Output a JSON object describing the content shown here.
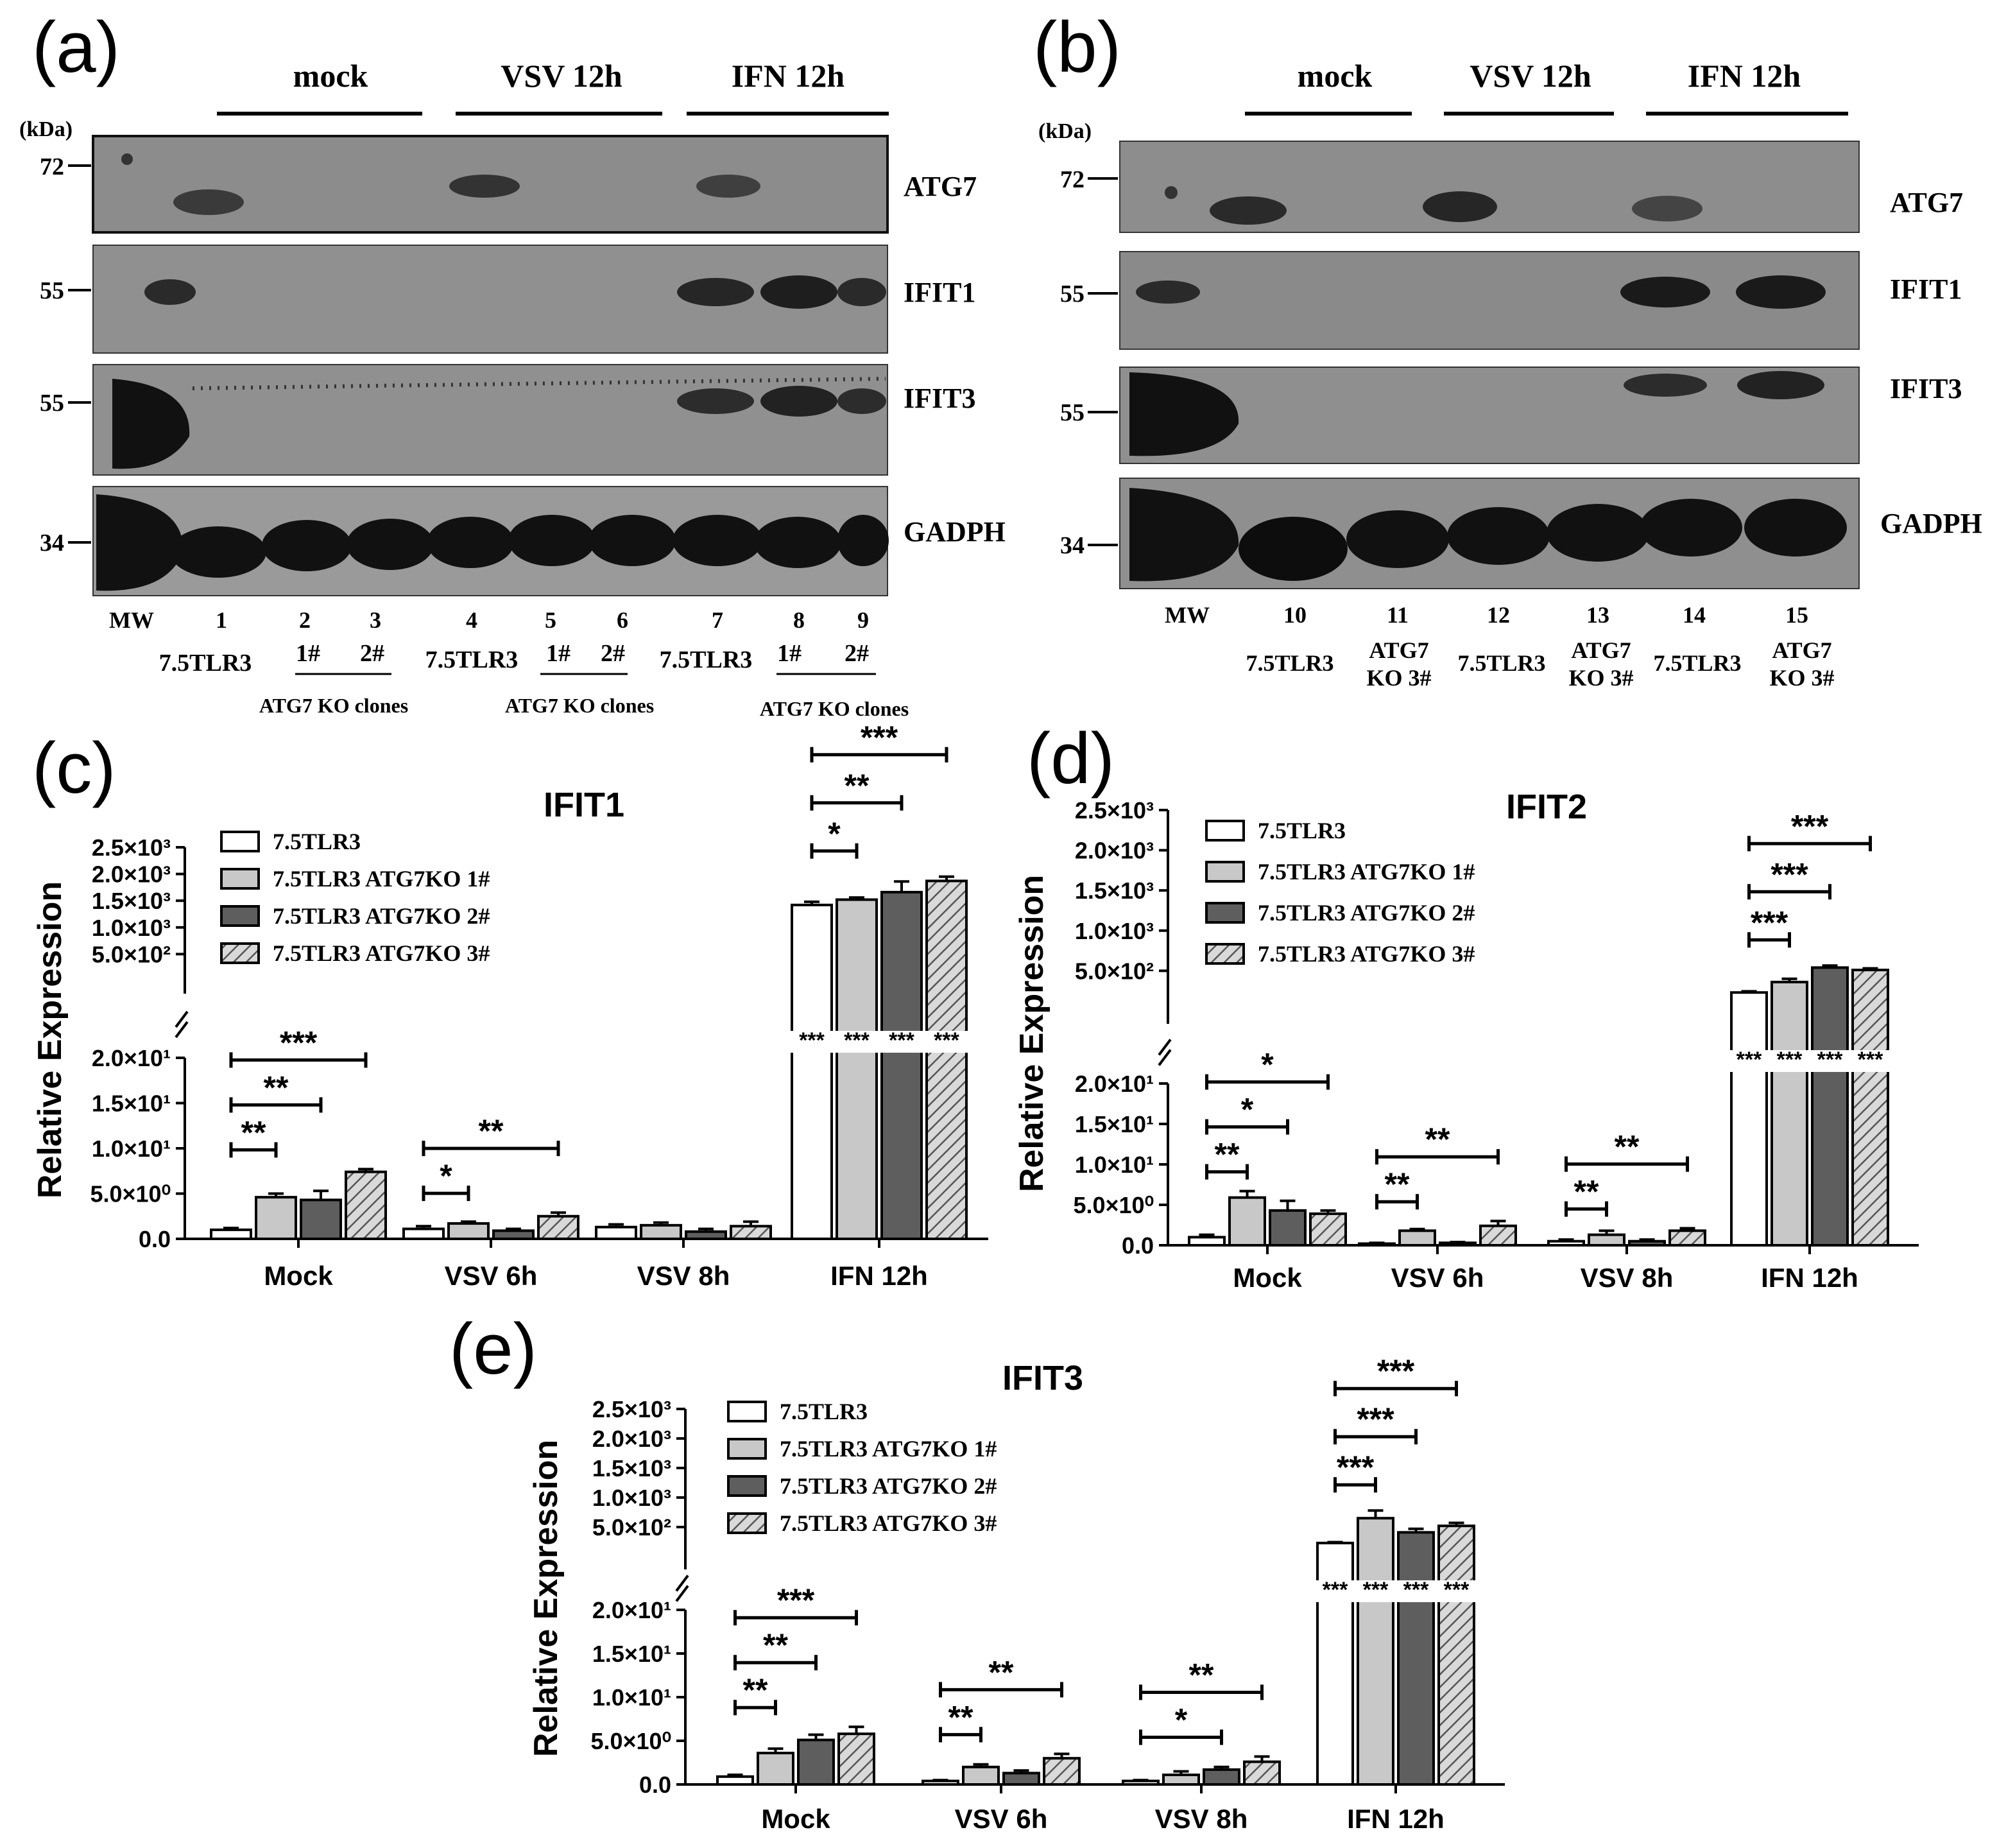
{
  "panels": {
    "a": {
      "label": "(a)",
      "groups": [
        "mock",
        "VSV 12h",
        "IFN 12h"
      ],
      "unit": "(kDa)",
      "markers": [
        "72",
        "55",
        "55",
        "34"
      ],
      "proteins": [
        "ATG7",
        "IFIT1",
        "IFIT3",
        "GADPH"
      ],
      "lane_numbers": [
        "MW",
        "1",
        "2",
        "3",
        "4",
        "5",
        "6",
        "7",
        "8",
        "9"
      ],
      "sample_labels": [
        "7.5TLR3",
        "1#",
        "2#",
        "7.5TLR3",
        "1#",
        "2#",
        "7.5TLR3",
        "1#",
        "2#"
      ],
      "clone_labels": [
        "ATG7 KO clones",
        "ATG7 KO clones",
        "ATG7 KO clones"
      ]
    },
    "b": {
      "label": "(b)",
      "groups": [
        "mock",
        "VSV 12h",
        "IFN 12h"
      ],
      "unit": "(kDa)",
      "markers": [
        "72",
        "55",
        "55",
        "34"
      ],
      "proteins": [
        "ATG7",
        "IFIT1",
        "IFIT3",
        "GADPH"
      ],
      "lane_numbers": [
        "MW",
        "10",
        "11",
        "12",
        "13",
        "14",
        "15"
      ],
      "sample_labels": [
        "7.5TLR3",
        "ATG7",
        "KO 3#",
        "7.5TLR3",
        "ATG7",
        "KO 3#",
        "7.5TLR3",
        "ATG7",
        "KO 3#"
      ]
    }
  },
  "chart_data": [
    {
      "panel": "(c)",
      "type": "bar",
      "title": "IFIT1",
      "ylabel": "Relative Expression",
      "categories": [
        "Mock",
        "VSV 6h",
        "VSV 8h",
        "IFN 12h"
      ],
      "broken_axis": true,
      "lower_ylim": [
        0,
        20
      ],
      "upper_ylim": [
        0,
        2500
      ],
      "lower_ticks": [
        "0.0",
        "5.0×10⁰",
        "1.0×10¹",
        "1.5×10¹",
        "2.0×10¹"
      ],
      "upper_ticks": [
        "5.0×10²",
        "1.0×10³",
        "1.5×10³",
        "2.0×10³",
        "2.5×10³"
      ],
      "series": [
        {
          "name": "7.5TLR3",
          "values": [
            1.0,
            1.1,
            1.3,
            1420
          ],
          "errors": [
            0.2,
            0.3,
            0.3,
            60
          ]
        },
        {
          "name": "7.5TLR3 ATG7KO 1#",
          "values": [
            4.6,
            1.7,
            1.5,
            1520
          ],
          "errors": [
            0.4,
            0.2,
            0.3,
            40
          ]
        },
        {
          "name": "7.5TLR3 ATG7KO 2#",
          "values": [
            4.3,
            0.9,
            0.8,
            1660
          ],
          "errors": [
            1.0,
            0.2,
            0.3,
            200
          ]
        },
        {
          "name": "7.5TLR3 ATG7KO 3#",
          "values": [
            7.4,
            2.5,
            1.4,
            1870
          ],
          "errors": [
            0.3,
            0.4,
            0.5,
            80
          ]
        }
      ],
      "significance": [
        {
          "category": "Mock",
          "to_series": 1,
          "label": "**"
        },
        {
          "category": "Mock",
          "to_series": 2,
          "label": "**"
        },
        {
          "category": "Mock",
          "to_series": 3,
          "label": "***"
        },
        {
          "category": "VSV 6h",
          "to_series": 1,
          "label": "*"
        },
        {
          "category": "VSV 6h",
          "to_series": 3,
          "label": "**"
        },
        {
          "category": "IFN 12h",
          "to_series": 1,
          "label": "*"
        },
        {
          "category": "IFN 12h",
          "to_series": 2,
          "label": "**"
        },
        {
          "category": "IFN 12h",
          "to_series": 3,
          "label": "***"
        }
      ],
      "bar_marks": [
        "***",
        "***",
        "***",
        "***"
      ]
    },
    {
      "panel": "(d)",
      "type": "bar",
      "title": "IFIT2",
      "ylabel": "Relative Expression",
      "categories": [
        "Mock",
        "VSV 6h",
        "VSV 8h",
        "IFN 12h"
      ],
      "broken_axis": true,
      "lower_ylim": [
        0,
        20
      ],
      "upper_ylim": [
        0,
        2500
      ],
      "lower_ticks": [
        "0.0",
        "5.0×10⁰",
        "1.0×10¹",
        "1.5×10¹",
        "2.0×10¹"
      ],
      "upper_ticks": [
        "5.0×10²",
        "1.0×10³",
        "1.5×10³",
        "2.0×10³",
        "2.5×10³"
      ],
      "series": [
        {
          "name": "7.5TLR3",
          "values": [
            1.0,
            0.2,
            0.5,
            230
          ],
          "errors": [
            0.3,
            0.1,
            0.2,
            15
          ]
        },
        {
          "name": "7.5TLR3 ATG7KO 1#",
          "values": [
            5.9,
            1.8,
            1.3,
            360
          ],
          "errors": [
            0.8,
            0.2,
            0.5,
            40
          ]
        },
        {
          "name": "7.5TLR3 ATG7KO 2#",
          "values": [
            4.3,
            0.3,
            0.5,
            540
          ],
          "errors": [
            1.2,
            0.1,
            0.2,
            25
          ]
        },
        {
          "name": "7.5TLR3 ATG7KO 3#",
          "values": [
            3.9,
            2.4,
            1.8,
            510
          ],
          "errors": [
            0.4,
            0.6,
            0.3,
            20
          ]
        }
      ],
      "significance": [
        {
          "category": "Mock",
          "to_series": 1,
          "label": "**"
        },
        {
          "category": "Mock",
          "to_series": 2,
          "label": "*"
        },
        {
          "category": "Mock",
          "to_series": 3,
          "label": "*"
        },
        {
          "category": "VSV 6h",
          "to_series": 1,
          "label": "**"
        },
        {
          "category": "VSV 6h",
          "to_series": 3,
          "label": "**"
        },
        {
          "category": "VSV 8h",
          "to_series": 1,
          "label": "**"
        },
        {
          "category": "VSV 8h",
          "to_series": 3,
          "label": "**"
        },
        {
          "category": "IFN 12h",
          "to_series": 1,
          "label": "***"
        },
        {
          "category": "IFN 12h",
          "to_series": 2,
          "label": "***"
        },
        {
          "category": "IFN 12h",
          "to_series": 3,
          "label": "***"
        }
      ],
      "bar_marks": [
        "***",
        "***",
        "***",
        "***"
      ]
    },
    {
      "panel": "(e)",
      "type": "bar",
      "title": "IFIT3",
      "ylabel": "Relative Expression",
      "categories": [
        "Mock",
        "VSV 6h",
        "VSV 8h",
        "IFN 12h"
      ],
      "broken_axis": true,
      "lower_ylim": [
        0,
        20
      ],
      "upper_ylim": [
        0,
        2500
      ],
      "lower_ticks": [
        "0.0",
        "5.0×10⁰",
        "1.0×10¹",
        "1.5×10¹",
        "2.0×10¹"
      ],
      "upper_ticks": [
        "5.0×10²",
        "1.0×10³",
        "1.5×10³",
        "2.0×10³",
        "2.5×10³"
      ],
      "series": [
        {
          "name": "7.5TLR3",
          "values": [
            0.9,
            0.4,
            0.4,
            230
          ],
          "errors": [
            0.2,
            0.1,
            0.1,
            15
          ]
        },
        {
          "name": "7.5TLR3 ATG7KO 1#",
          "values": [
            3.6,
            2.0,
            1.1,
            650
          ],
          "errors": [
            0.5,
            0.3,
            0.4,
            130
          ]
        },
        {
          "name": "7.5TLR3 ATG7KO 2#",
          "values": [
            5.1,
            1.3,
            1.7,
            410
          ],
          "errors": [
            0.6,
            0.3,
            0.3,
            60
          ]
        },
        {
          "name": "7.5TLR3 ATG7KO 3#",
          "values": [
            5.8,
            3.0,
            2.6,
            520
          ],
          "errors": [
            0.8,
            0.5,
            0.6,
            50
          ]
        }
      ],
      "significance": [
        {
          "category": "Mock",
          "to_series": 1,
          "label": "**"
        },
        {
          "category": "Mock",
          "to_series": 2,
          "label": "**"
        },
        {
          "category": "Mock",
          "to_series": 3,
          "label": "***"
        },
        {
          "category": "VSV 6h",
          "to_series": 1,
          "label": "**"
        },
        {
          "category": "VSV 6h",
          "to_series": 3,
          "label": "**"
        },
        {
          "category": "VSV 8h",
          "to_series": 2,
          "label": "*"
        },
        {
          "category": "VSV 8h",
          "to_series": 3,
          "label": "**"
        },
        {
          "category": "IFN 12h",
          "to_series": 1,
          "label": "***"
        },
        {
          "category": "IFN 12h",
          "to_series": 2,
          "label": "***"
        },
        {
          "category": "IFN 12h",
          "to_series": 3,
          "label": "***"
        }
      ],
      "bar_marks": [
        "***",
        "***",
        "***",
        "***"
      ]
    }
  ],
  "colors": {
    "series_fills": [
      "#ffffff",
      "#c8c8c8",
      "#5e5e5e",
      "#d2d2d2"
    ],
    "ink": "#000000"
  }
}
